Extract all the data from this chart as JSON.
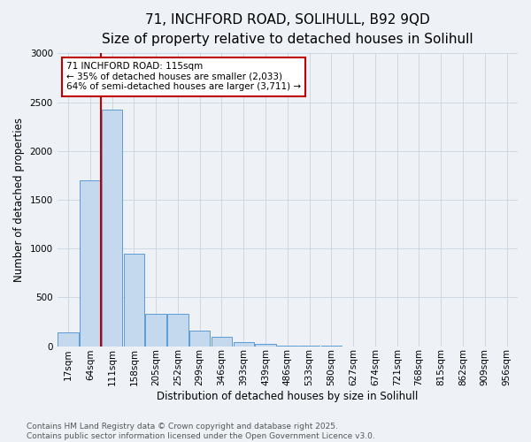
{
  "title_line1": "71, INCHFORD ROAD, SOLIHULL, B92 9QD",
  "title_line2": "Size of property relative to detached houses in Solihull",
  "xlabel": "Distribution of detached houses by size in Solihull",
  "ylabel": "Number of detached properties",
  "bar_color": "#c5d9ee",
  "bar_edge_color": "#5b9bd5",
  "bar_categories": [
    "17sqm",
    "64sqm",
    "111sqm",
    "158sqm",
    "205sqm",
    "252sqm",
    "299sqm",
    "346sqm",
    "393sqm",
    "439sqm",
    "486sqm",
    "533sqm",
    "580sqm",
    "627sqm",
    "674sqm",
    "721sqm",
    "768sqm",
    "815sqm",
    "862sqm",
    "909sqm",
    "956sqm"
  ],
  "bar_values": [
    140,
    1700,
    2420,
    950,
    330,
    330,
    155,
    95,
    45,
    25,
    8,
    3,
    1,
    0,
    0,
    0,
    0,
    0,
    0,
    0,
    0
  ],
  "ylim": [
    0,
    3000
  ],
  "yticks": [
    0,
    500,
    1000,
    1500,
    2000,
    2500,
    3000
  ],
  "vline_color": "#c00000",
  "vline_index": 2,
  "annotation_text": "71 INCHFORD ROAD: 115sqm\n← 35% of detached houses are smaller (2,033)\n64% of semi-detached houses are larger (3,711) →",
  "annotation_box_color": "#ffffff",
  "annotation_box_edge": "#c00000",
  "background_color": "#eef2f7",
  "grid_color": "#c8d4e0",
  "footer_text": "Contains HM Land Registry data © Crown copyright and database right 2025.\nContains public sector information licensed under the Open Government Licence v3.0.",
  "title_fontsize": 11,
  "subtitle_fontsize": 9.5,
  "label_fontsize": 8.5,
  "tick_fontsize": 7.5,
  "annotation_fontsize": 7.5,
  "footer_fontsize": 6.5
}
